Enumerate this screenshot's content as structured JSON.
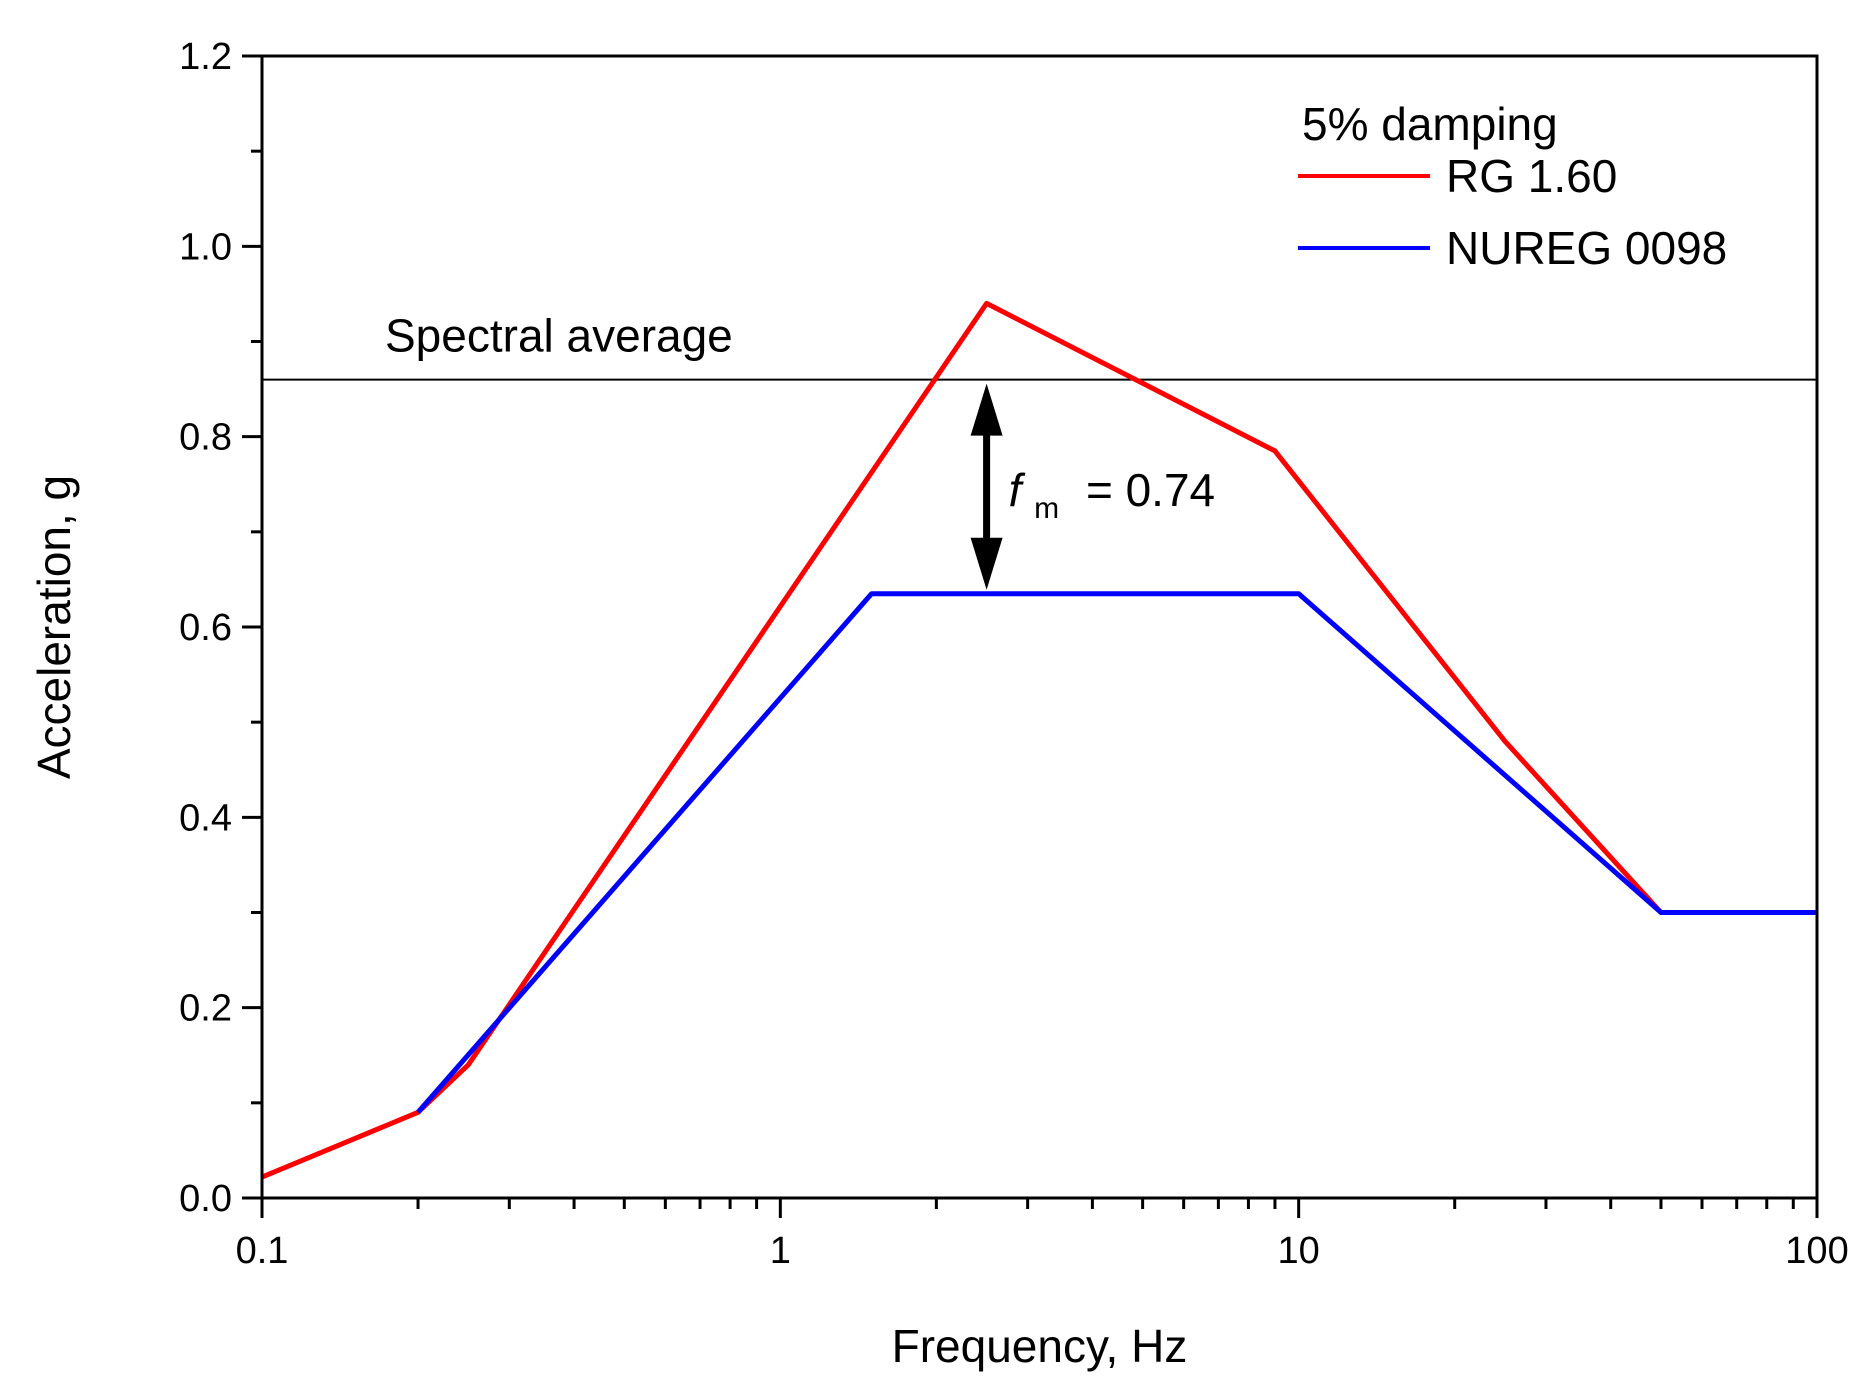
{
  "chart_data": {
    "type": "line",
    "title": "",
    "xlabel": "Frequency, Hz",
    "ylabel": "Acceleration, g",
    "xscale": "log",
    "xlim": [
      0.1,
      100
    ],
    "ylim": [
      0.0,
      1.2
    ],
    "x_tick_labels": [
      "0.1",
      "1",
      "10",
      "100"
    ],
    "x_tick_values": [
      0.1,
      1,
      10,
      100
    ],
    "y_tick_labels": [
      "0.0",
      "0.2",
      "0.4",
      "0.6",
      "0.8",
      "1.0",
      "1.2"
    ],
    "y_tick_values": [
      0.0,
      0.2,
      0.4,
      0.6,
      0.8,
      1.0,
      1.2
    ],
    "grid": false,
    "legend": {
      "position": "top-right",
      "title": "5% damping",
      "entries": [
        "RG 1.60",
        "NUREG 0098"
      ]
    },
    "series": [
      {
        "name": "RG 1.60",
        "color": "#ff0000",
        "x": [
          0.1,
          0.2,
          0.25,
          2.5,
          9.0,
          25.0,
          50.0,
          100.0
        ],
        "y": [
          0.022,
          0.09,
          0.14,
          0.94,
          0.785,
          0.48,
          0.3,
          0.3
        ]
      },
      {
        "name": "NUREG 0098",
        "color": "#0000ff",
        "x": [
          0.2,
          1.5,
          10.0,
          50.0,
          100.0
        ],
        "y": [
          0.09,
          0.635,
          0.635,
          0.3,
          0.3
        ]
      }
    ],
    "reference_line": {
      "label": "Spectral average",
      "y": 0.86,
      "color": "#000000"
    },
    "annotation": {
      "symbol": "f",
      "subscript": "m",
      "text": "= 0.74",
      "arrow_x": 2.5,
      "arrow_from_y": 0.635,
      "arrow_to_y": 0.86
    }
  }
}
